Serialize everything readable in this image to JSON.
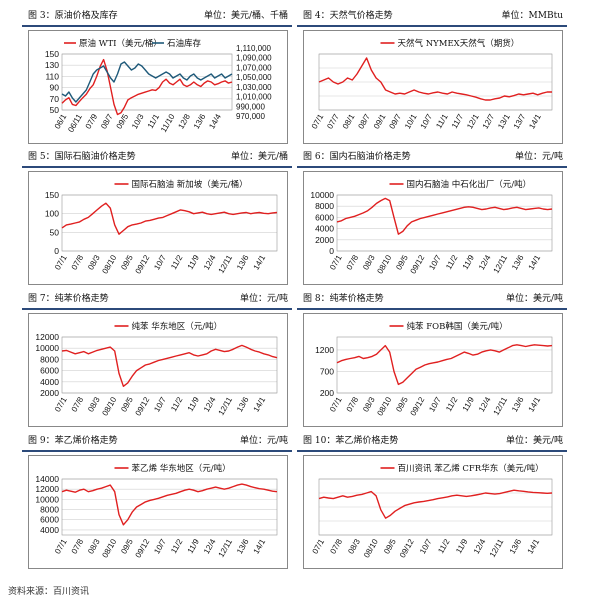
{
  "source": "资料来源：百川资讯",
  "chart_data": [
    {
      "id": "c3",
      "header_title": "图 3：原油价格及库存",
      "header_unit": "单位：美元/桶、千桶",
      "type": "line",
      "x_ticks": [
        "06/1",
        "06/11",
        "07/9",
        "08/7",
        "09/5",
        "10/3",
        "11/1",
        "11/10",
        "12/8",
        "13/6",
        "14/4"
      ],
      "ylim": [
        50,
        150
      ],
      "y_ticks": [
        50,
        70,
        90,
        110,
        130,
        150
      ],
      "y2lim": [
        970000,
        1110000
      ],
      "y2_ticks": [
        "1,110,000",
        "1,090,000",
        "1,070,000",
        "1,050,000",
        "1,030,000",
        "1,010,000",
        "990,000",
        "970,000"
      ],
      "series": [
        {
          "name": "原油 WTI（美元/桶）",
          "color": "#e02020",
          "axis": "left",
          "values": [
            62,
            68,
            72,
            60,
            58,
            65,
            72,
            78,
            88,
            95,
            110,
            128,
            140,
            120,
            90,
            60,
            42,
            45,
            55,
            68,
            72,
            75,
            78,
            80,
            82,
            84,
            86,
            85,
            90,
            100,
            105,
            98,
            95,
            100,
            105,
            95,
            92,
            95,
            100,
            95,
            92,
            98,
            102,
            100,
            95,
            97,
            100,
            102,
            98,
            100
          ]
        },
        {
          "name": "石油库存",
          "color": "#1f5a7a",
          "axis": "right",
          "values": [
            1010000,
            1005000,
            1015000,
            1000000,
            990000,
            1000000,
            1010000,
            1020000,
            1040000,
            1060000,
            1070000,
            1075000,
            1080000,
            1065000,
            1050000,
            1040000,
            1060000,
            1085000,
            1090000,
            1080000,
            1070000,
            1075000,
            1085000,
            1080000,
            1070000,
            1060000,
            1055000,
            1050000,
            1055000,
            1060000,
            1065000,
            1060000,
            1050000,
            1055000,
            1060000,
            1050000,
            1045000,
            1055000,
            1060000,
            1050000,
            1045000,
            1050000,
            1055000,
            1060000,
            1050000,
            1055000,
            1060000,
            1050000,
            1055000,
            1060000
          ]
        }
      ]
    },
    {
      "id": "c4",
      "header_title": "图 4：天然气价格走势",
      "header_unit": "单位：MMBtu",
      "type": "line",
      "x_ticks": [
        "07/1",
        "07/7",
        "08/1",
        "08/7",
        "09/1",
        "09/7",
        "10/1",
        "10/7",
        "11/1",
        "11/7",
        "12/1",
        "12/7",
        "13/1",
        "13/7",
        "14/1"
      ],
      "ylim": [
        0,
        14
      ],
      "y_ticks": [],
      "series": [
        {
          "name": "天然气 NYMEX天然气（期货）",
          "color": "#e02020",
          "values": [
            7,
            7.5,
            8,
            7,
            6.5,
            7,
            8,
            7.5,
            9,
            11,
            13,
            10,
            8,
            7,
            5,
            4.5,
            4,
            4.2,
            4,
            4.5,
            5,
            4.5,
            4.2,
            4,
            4.3,
            4.5,
            4.2,
            4,
            4.5,
            4.2,
            4,
            3.8,
            3.5,
            3.2,
            2.8,
            2.5,
            2.5,
            2.8,
            3,
            3.5,
            3.3,
            3.6,
            4,
            3.8,
            4,
            4.2,
            3.8,
            4.2,
            4.5,
            4.5
          ]
        }
      ]
    },
    {
      "id": "c5",
      "header_title": "图 5：国际石脑油价格走势",
      "header_unit": "单位：美元/桶",
      "type": "line",
      "x_ticks": [
        "07/1",
        "07/8",
        "08/3",
        "08/10",
        "09/5",
        "09/12",
        "10/7",
        "11/2",
        "11/9",
        "12/4",
        "12/11",
        "13/6",
        "14/1"
      ],
      "ylim": [
        0,
        150
      ],
      "y_ticks": [
        0,
        50,
        100,
        150
      ],
      "series": [
        {
          "name": "国际石脑油 新加坡（美元/桶）",
          "color": "#e02020",
          "values": [
            62,
            70,
            72,
            75,
            78,
            85,
            90,
            100,
            110,
            120,
            128,
            115,
            70,
            45,
            55,
            65,
            70,
            72,
            75,
            80,
            82,
            85,
            88,
            90,
            95,
            100,
            105,
            110,
            108,
            105,
            100,
            102,
            104,
            100,
            98,
            100,
            102,
            104,
            100,
            98,
            100,
            102,
            103,
            100,
            102,
            103,
            101,
            100,
            102,
            103
          ]
        }
      ]
    },
    {
      "id": "c6",
      "header_title": "图 6：国内石脑油价格走势",
      "header_unit": "单位：元/吨",
      "type": "line",
      "x_ticks": [
        "07/1",
        "07/8",
        "08/3",
        "08/10",
        "09/5",
        "09/12",
        "10/7",
        "11/2",
        "11/9",
        "12/4",
        "12/11",
        "13/6",
        "14/1"
      ],
      "ylim": [
        0,
        10000
      ],
      "y_ticks": [
        0,
        2000,
        4000,
        6000,
        8000,
        10000
      ],
      "series": [
        {
          "name": "国内石脑油 中石化出厂（元/吨）",
          "color": "#e02020",
          "values": [
            5200,
            5400,
            5800,
            6000,
            6200,
            6500,
            6800,
            7200,
            7800,
            8500,
            9000,
            9400,
            9000,
            6000,
            3000,
            3500,
            4500,
            5200,
            5500,
            5800,
            6000,
            6200,
            6400,
            6600,
            6800,
            7000,
            7200,
            7400,
            7600,
            7800,
            7900,
            7800,
            7600,
            7400,
            7500,
            7700,
            7800,
            7600,
            7400,
            7500,
            7700,
            7800,
            7600,
            7400,
            7500,
            7600,
            7700,
            7500,
            7400,
            7500
          ]
        }
      ]
    },
    {
      "id": "c7",
      "header_title": "图 7：纯苯价格走势",
      "header_unit": "单位：元/吨",
      "type": "line",
      "x_ticks": [
        "07/1",
        "07/8",
        "08/3",
        "08/10",
        "09/5",
        "09/12",
        "10/7",
        "11/2",
        "11/9",
        "12/4",
        "12/11",
        "13/6",
        "14/1"
      ],
      "ylim": [
        2000,
        12000
      ],
      "y_ticks": [
        2000,
        4000,
        6000,
        8000,
        10000,
        12000
      ],
      "series": [
        {
          "name": "纯苯 华东地区（元/吨）",
          "color": "#e02020",
          "values": [
            9500,
            9600,
            9300,
            9000,
            9200,
            9400,
            9000,
            9300,
            9600,
            9800,
            10000,
            10200,
            9500,
            5500,
            3200,
            3800,
            5000,
            6000,
            6500,
            7000,
            7200,
            7500,
            7800,
            8000,
            8200,
            8400,
            8600,
            8800,
            9000,
            9200,
            8800,
            8600,
            8800,
            9000,
            9500,
            9800,
            9600,
            9400,
            9500,
            9800,
            10200,
            10500,
            10200,
            9800,
            9500,
            9300,
            9000,
            8800,
            8500,
            8300
          ]
        }
      ]
    },
    {
      "id": "c8",
      "header_title": "图 8：纯苯价格走势",
      "header_unit": "单位：美元/吨",
      "type": "line",
      "x_ticks": [
        "07/1",
        "07/8",
        "08/3",
        "08/10",
        "09/5",
        "09/12",
        "10/7",
        "11/2",
        "11/9",
        "12/4",
        "12/11",
        "13/6",
        "14/1"
      ],
      "ylim": [
        200,
        1500
      ],
      "y_ticks": [
        200,
        700,
        1200
      ],
      "series": [
        {
          "name": "纯苯 FOB韩国（美元/吨）",
          "color": "#e02020",
          "values": [
            900,
            950,
            980,
            1000,
            1020,
            1050,
            1000,
            1020,
            1050,
            1100,
            1200,
            1300,
            1150,
            700,
            400,
            450,
            550,
            650,
            750,
            800,
            850,
            880,
            900,
            920,
            950,
            980,
            1000,
            1050,
            1100,
            1150,
            1120,
            1080,
            1100,
            1150,
            1180,
            1200,
            1180,
            1150,
            1200,
            1250,
            1300,
            1320,
            1300,
            1280,
            1300,
            1320,
            1310,
            1300,
            1290,
            1300
          ]
        }
      ]
    },
    {
      "id": "c9",
      "header_title": "图 9：苯乙烯价格走势",
      "header_unit": "单位：元/吨",
      "type": "line",
      "x_ticks": [
        "07/1",
        "07/8",
        "08/3",
        "08/10",
        "09/5",
        "09/12",
        "10/7",
        "11/2",
        "11/9",
        "12/4",
        "12/11",
        "13/6",
        "14/1"
      ],
      "ylim": [
        3000,
        14000
      ],
      "y_ticks": [
        4000,
        6000,
        8000,
        10000,
        12000,
        14000
      ],
      "series": [
        {
          "name": "苯乙烯 华东地区（元/吨）",
          "color": "#e02020",
          "values": [
            11500,
            11800,
            11600,
            11400,
            11800,
            12000,
            11500,
            11700,
            12000,
            12200,
            12500,
            12800,
            11500,
            7000,
            5000,
            6000,
            7500,
            8500,
            9000,
            9500,
            9800,
            10000,
            10200,
            10500,
            10800,
            11000,
            11200,
            11500,
            11800,
            12000,
            11800,
            11500,
            11700,
            12000,
            12200,
            12400,
            12200,
            12000,
            12200,
            12500,
            12800,
            13000,
            12800,
            12500,
            12300,
            12100,
            12000,
            11800,
            11600,
            11500
          ]
        }
      ]
    },
    {
      "id": "c10",
      "header_title": "图 10：苯乙烯价格走势",
      "header_unit": "单位：美元/吨",
      "type": "line",
      "x_ticks": [
        "07/1",
        "07/8",
        "08/3",
        "08/10",
        "09/5",
        "09/12",
        "10/7",
        "11/2",
        "11/9",
        "12/4",
        "12/11",
        "13/6",
        "14/1"
      ],
      "ylim": [
        0,
        2000
      ],
      "y_ticks": [],
      "series": [
        {
          "name": "百川资讯 苯乙烯 CFR华东（美元/吨）",
          "color": "#e02020",
          "values": [
            1300,
            1350,
            1320,
            1300,
            1350,
            1400,
            1350,
            1380,
            1420,
            1450,
            1500,
            1550,
            1400,
            900,
            600,
            700,
            850,
            950,
            1050,
            1100,
            1150,
            1180,
            1200,
            1230,
            1260,
            1300,
            1330,
            1360,
            1400,
            1420,
            1400,
            1380,
            1400,
            1430,
            1460,
            1500,
            1480,
            1460,
            1480,
            1520,
            1560,
            1600,
            1580,
            1560,
            1540,
            1520,
            1510,
            1500,
            1490,
            1500
          ]
        }
      ]
    }
  ]
}
